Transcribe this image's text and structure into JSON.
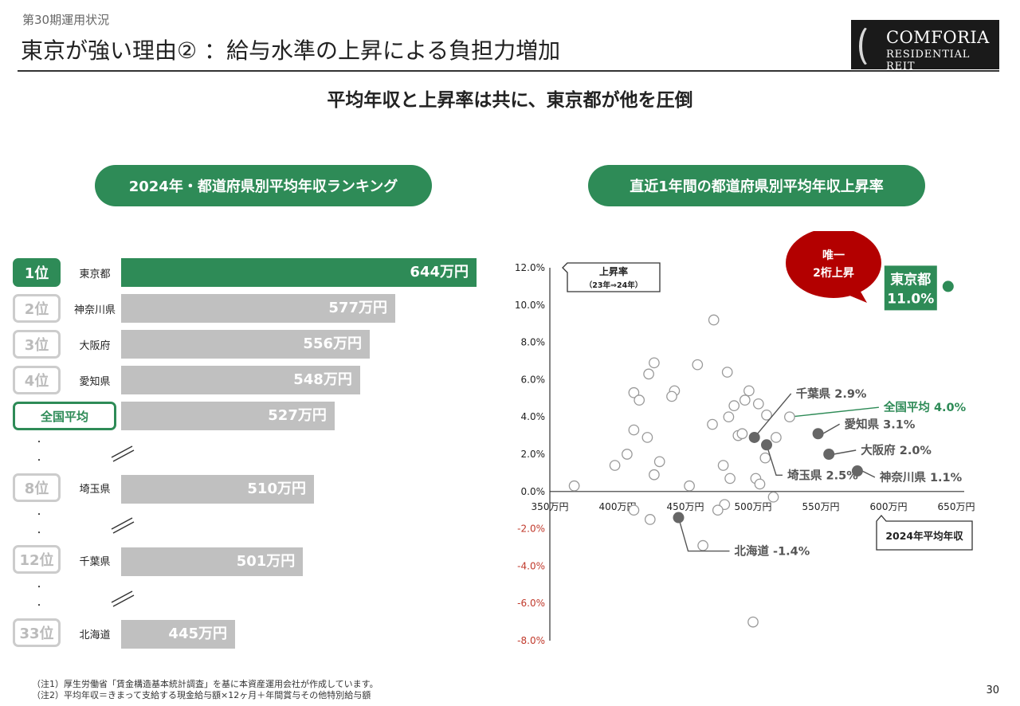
{
  "header": {
    "period": "第30期運用状況",
    "title": "東京が強い理由② ：給与水準の上昇による負担力増加",
    "logo_line1": "COMFORIA",
    "logo_line2": "RESIDENTIAL REIT"
  },
  "subtitle": "平均年収と上昇率は共に、東京都が他を圧倒",
  "left_section": {
    "title": "2024年・都道府県別平均年収ランキング",
    "dot": "・"
  },
  "right_section": {
    "title": "直近1年間の都道府県別平均年収上昇率"
  },
  "colors": {
    "accent": "#2e8b57",
    "bar_gray": "#c0c0c0",
    "negative_tick": "#c0392b",
    "dark_red": "#b30000"
  },
  "chart_data": [
    {
      "type": "bar",
      "orientation": "horizontal",
      "unit": "万円",
      "rows": [
        {
          "rank": "1位",
          "prefecture": "東京都",
          "value": 644,
          "label": "644万円",
          "highlight": true
        },
        {
          "rank": "2位",
          "prefecture": "神奈川県",
          "value": 577,
          "label": "577万円"
        },
        {
          "rank": "3位",
          "prefecture": "大阪府",
          "value": 556,
          "label": "556万円"
        },
        {
          "rank": "4位",
          "prefecture": "愛知県",
          "value": 548,
          "label": "548万円"
        },
        {
          "rank": "全国平均",
          "prefecture": "",
          "value": 527,
          "label": "527万円",
          "national": true
        },
        {
          "rank": "8位",
          "prefecture": "埼玉県",
          "value": 510,
          "label": "510万円"
        },
        {
          "rank": "12位",
          "prefecture": "千葉県",
          "value": 501,
          "label": "501万円"
        },
        {
          "rank": "33位",
          "prefecture": "北海道",
          "value": 445,
          "label": "445万円"
        }
      ]
    },
    {
      "type": "scatter",
      "xlabel": "2024年平均年収",
      "ylabel": "上昇率",
      "ylabel_sub": "（23年⇒24年）",
      "xlim": [
        350,
        650
      ],
      "ylim": [
        -8,
        12
      ],
      "x_ticks": [
        "350万円",
        "400万円",
        "450万円",
        "500万円",
        "550万円",
        "600万円",
        "650万円"
      ],
      "y_ticks": [
        "12.0%",
        "10.0%",
        "8.0%",
        "6.0%",
        "4.0%",
        "2.0%",
        "0.0%",
        "-2.0%",
        "-4.0%",
        "-6.0%",
        "-8.0%"
      ],
      "highlighted": [
        {
          "name": "東京都",
          "x": 644,
          "y": 11.0,
          "label_line1": "東京都",
          "label_line2": "11.0%",
          "style": "tokyo"
        },
        {
          "name": "全国平均",
          "x": 527,
          "y": 4.0,
          "label": "全国平均 4.0%",
          "style": "national"
        },
        {
          "name": "千葉県",
          "x": 501,
          "y": 2.9,
          "label": "千葉県 2.9%",
          "style": "filled"
        },
        {
          "name": "愛知県",
          "x": 548,
          "y": 3.1,
          "label": "愛知県 3.1%",
          "style": "filled"
        },
        {
          "name": "大阪府",
          "x": 556,
          "y": 2.0,
          "label": "大阪府 2.0%",
          "style": "filled"
        },
        {
          "name": "埼玉県",
          "x": 510,
          "y": 2.5,
          "label": "埼玉県 2.5%",
          "style": "filled"
        },
        {
          "name": "神奈川県",
          "x": 577,
          "y": 1.1,
          "label": "神奈川県 1.1%",
          "style": "filled"
        },
        {
          "name": "北海道",
          "x": 445,
          "y": -1.4,
          "label": "北海道 -1.4%",
          "style": "filled"
        }
      ],
      "others": [
        [
          471,
          9.2
        ],
        [
          427,
          6.9
        ],
        [
          459,
          6.8
        ],
        [
          481,
          6.4
        ],
        [
          423,
          6.3
        ],
        [
          412,
          5.3
        ],
        [
          442,
          5.4
        ],
        [
          497,
          5.4
        ],
        [
          416,
          4.9
        ],
        [
          440,
          5.1
        ],
        [
          494,
          4.9
        ],
        [
          504,
          4.7
        ],
        [
          486,
          4.6
        ],
        [
          482,
          4.0
        ],
        [
          470,
          3.6
        ],
        [
          510,
          4.1
        ],
        [
          412,
          3.3
        ],
        [
          422,
          2.9
        ],
        [
          489,
          3.0
        ],
        [
          492,
          3.1
        ],
        [
          517,
          2.9
        ],
        [
          407,
          2.0
        ],
        [
          398,
          1.4
        ],
        [
          431,
          1.6
        ],
        [
          509,
          1.8
        ],
        [
          478,
          1.4
        ],
        [
          427,
          0.9
        ],
        [
          483,
          0.7
        ],
        [
          453,
          0.3
        ],
        [
          502,
          0.7
        ],
        [
          505,
          0.4
        ],
        [
          368,
          0.3
        ],
        [
          515,
          -0.3
        ],
        [
          479,
          -0.7
        ],
        [
          412,
          -1.0
        ],
        [
          474,
          -1.0
        ],
        [
          424,
          -1.5
        ],
        [
          463,
          -2.9
        ],
        [
          500,
          -7.0
        ]
      ],
      "callout": {
        "line1": "唯一",
        "line2": "2桁上昇"
      }
    }
  ],
  "footer": {
    "note1": "（注1）厚生労働省「賃金構造基本統計調査」を基に本資産運用会社が作成しています。",
    "note2": "（注2）平均年収＝きまって支給する現金給与額×12ヶ月＋年間賞与その他特別給与額",
    "page": "30"
  }
}
